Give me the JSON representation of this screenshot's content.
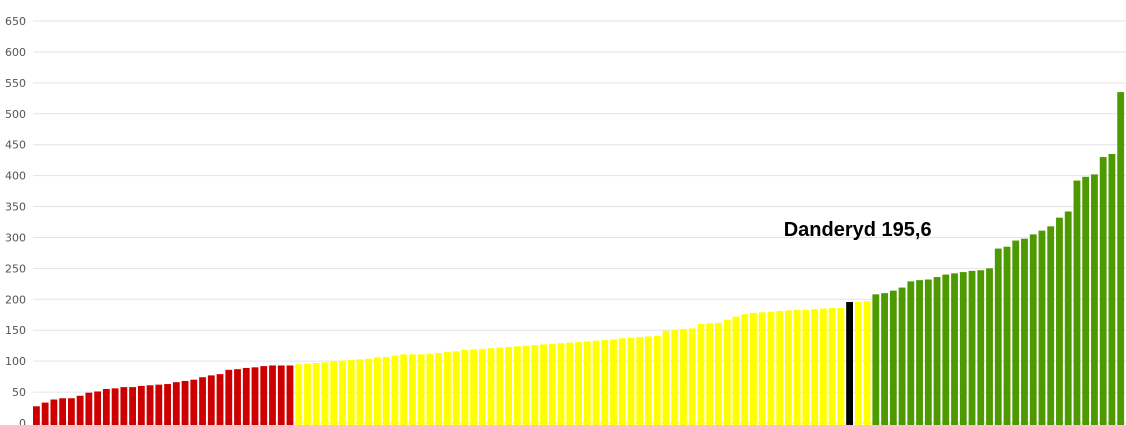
{
  "chart_data": {
    "type": "bar",
    "ylim": [
      0,
      650
    ],
    "yticks": [
      0,
      50,
      100,
      150,
      200,
      250,
      300,
      350,
      400,
      450,
      500,
      550,
      600,
      650
    ],
    "grid": true,
    "colors": {
      "low": "#cc0000",
      "mid": "#ffff00",
      "high": "#4c9a00",
      "highlight": "#000000",
      "grid": "#e3e3e3",
      "tick": "#555555"
    },
    "values": [
      27,
      33,
      38,
      40,
      40,
      44,
      49,
      51,
      55,
      56,
      58,
      58,
      60,
      61,
      62,
      63,
      66,
      68,
      70,
      74,
      77,
      79,
      86,
      87,
      89,
      90,
      92,
      93,
      93,
      93,
      95,
      96,
      97,
      98,
      100,
      101,
      102,
      103,
      104,
      106,
      107,
      109,
      111,
      111,
      111,
      112,
      113,
      115,
      116,
      118,
      119,
      120,
      121,
      122,
      123,
      124,
      125,
      126,
      127,
      128,
      129,
      130,
      131,
      132,
      133,
      134,
      135,
      137,
      138,
      139,
      140,
      141,
      149,
      150,
      152,
      153,
      160,
      161,
      162,
      167,
      172,
      176,
      178,
      179,
      180,
      181,
      182,
      183,
      183,
      184,
      185,
      186,
      186,
      195.6,
      196,
      197,
      208,
      210,
      214,
      219,
      229,
      231,
      232,
      236,
      240,
      242,
      244,
      246,
      247,
      250,
      282,
      285,
      295,
      298,
      305,
      311,
      318,
      332,
      342,
      392,
      398,
      402,
      430,
      435,
      535
    ],
    "groups": {
      "low_count": 30,
      "mid_count": 66
    },
    "highlight_index": 93,
    "annotations": [
      {
        "text": "Danderyd 195,6",
        "index": 93
      }
    ]
  }
}
